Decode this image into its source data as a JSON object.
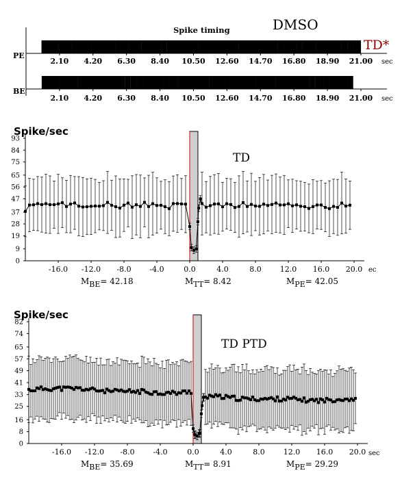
{
  "chart_data": [
    {
      "type": "raster",
      "title": "Spike timing",
      "condition": "DMSO",
      "marker_label": "TD*",
      "x_unit": "sec",
      "x_ticks": [
        "2.10",
        "4.20",
        "6.30",
        "8.40",
        "10.50",
        "12.60",
        "14.70",
        "16.80",
        "18.90",
        "21.00"
      ],
      "x_range": [
        0,
        21.0
      ],
      "rows": [
        {
          "name": "PE",
          "duration": 21.0,
          "spike_rate": 42
        },
        {
          "name": "BE",
          "duration": 20.5,
          "spike_rate": 42
        }
      ]
    },
    {
      "type": "line",
      "ylabel": "Spike/sec",
      "title": "TD",
      "x_unit": "ec",
      "xlim": [
        -20,
        20
      ],
      "ylim": [
        0,
        93
      ],
      "y_ticks": [
        0,
        9,
        19,
        28,
        37,
        47,
        56,
        65,
        75,
        84,
        93
      ],
      "x_ticks": [
        "-16.0",
        "-12.0",
        "-8.0",
        "-4.0",
        "0.0",
        "4.0",
        "8.0",
        "12.0",
        "16.0",
        "20.0"
      ],
      "shaded_window": [
        0,
        1
      ],
      "stats": [
        {
          "sym": "M",
          "sub": "BE",
          "text": "= 42.18"
        },
        {
          "sym": "M",
          "sub": "TT",
          "text": "= 8.42"
        },
        {
          "sym": "M",
          "sub": "PE",
          "text": "= 42.05"
        }
      ],
      "series": [
        {
          "values": [
            [
              -20.0,
              38
            ],
            [
              -19.5,
              41
            ],
            [
              -19.0,
              42
            ],
            [
              -18.5,
              42
            ],
            [
              -18.0,
              43
            ],
            [
              -17.5,
              42
            ],
            [
              -17.0,
              43
            ],
            [
              -16.5,
              42
            ],
            [
              -16.0,
              42
            ],
            [
              -15.5,
              43
            ],
            [
              -15.0,
              42
            ],
            [
              -14.5,
              42
            ],
            [
              -14.0,
              43
            ],
            [
              -13.5,
              42
            ],
            [
              -13.0,
              42
            ],
            [
              -12.5,
              41
            ],
            [
              -12.0,
              42
            ],
            [
              -11.5,
              43
            ],
            [
              -11.0,
              42
            ],
            [
              -10.5,
              42
            ],
            [
              -10.0,
              43
            ],
            [
              -9.5,
              42
            ],
            [
              -9.0,
              42
            ],
            [
              -8.5,
              41
            ],
            [
              -8.0,
              42
            ],
            [
              -7.5,
              43
            ],
            [
              -7.0,
              42
            ],
            [
              -6.5,
              42
            ],
            [
              -6.0,
              41
            ],
            [
              -5.5,
              43
            ],
            [
              -5.0,
              42
            ],
            [
              -4.5,
              42
            ],
            [
              -4.0,
              43
            ],
            [
              -3.5,
              42
            ],
            [
              -3.0,
              42
            ],
            [
              -2.5,
              41
            ],
            [
              -2.0,
              42
            ],
            [
              -1.5,
              43
            ],
            [
              -1.0,
              42
            ],
            [
              -0.5,
              42
            ],
            [
              0.0,
              26
            ],
            [
              0.2,
              10
            ],
            [
              0.5,
              8
            ],
            [
              0.8,
              9
            ],
            [
              1.1,
              40
            ],
            [
              1.3,
              47
            ],
            [
              1.5,
              43
            ],
            [
              2.0,
              42
            ],
            [
              2.5,
              42
            ],
            [
              3.0,
              43
            ],
            [
              3.5,
              42
            ],
            [
              4.0,
              42
            ],
            [
              4.5,
              43
            ],
            [
              5.0,
              42
            ],
            [
              5.5,
              41
            ],
            [
              6.0,
              42
            ],
            [
              6.5,
              43
            ],
            [
              7.0,
              42
            ],
            [
              7.5,
              42
            ],
            [
              8.0,
              41
            ],
            [
              8.5,
              42
            ],
            [
              9.0,
              43
            ],
            [
              9.5,
              42
            ],
            [
              10.0,
              42
            ],
            [
              10.5,
              43
            ],
            [
              11.0,
              42
            ],
            [
              11.5,
              41
            ],
            [
              12.0,
              42
            ],
            [
              12.5,
              42
            ],
            [
              13.0,
              43
            ],
            [
              13.5,
              42
            ],
            [
              14.0,
              42
            ],
            [
              14.5,
              41
            ],
            [
              15.0,
              42
            ],
            [
              15.5,
              43
            ],
            [
              16.0,
              42
            ],
            [
              16.5,
              42
            ],
            [
              17.0,
              41
            ],
            [
              17.5,
              42
            ],
            [
              18.0,
              42
            ],
            [
              18.5,
              43
            ],
            [
              19.0,
              42
            ],
            [
              19.5,
              42
            ]
          ],
          "error": 21
        }
      ]
    },
    {
      "type": "line",
      "ylabel": "Spike/sec",
      "title": "TD PTD",
      "x_unit": "sec",
      "xlim": [
        -20,
        20
      ],
      "ylim": [
        0,
        82
      ],
      "y_ticks": [
        0,
        8,
        16,
        25,
        33,
        41,
        49,
        57,
        65,
        74,
        82
      ],
      "x_ticks": [
        "-16.0",
        "-12.0",
        "-8.0",
        "-4.0",
        "0.0",
        "4.0",
        "8.0",
        "12.0",
        "16.0",
        "20.0"
      ],
      "shaded_window": [
        0,
        1
      ],
      "stats": [
        {
          "sym": "M",
          "sub": "BE",
          "text": "= 35.69"
        },
        {
          "sym": "M",
          "sub": "TT",
          "text": "= 8.91"
        },
        {
          "sym": "M",
          "sub": "PE",
          "text": "= 29.29"
        }
      ],
      "series": [
        {
          "values": [
            [
              -20.0,
              36
            ],
            [
              -18.0,
              37
            ],
            [
              -16.0,
              37
            ],
            [
              -14.0,
              37
            ],
            [
              -12.0,
              36
            ],
            [
              -10.0,
              35
            ],
            [
              -8.0,
              35
            ],
            [
              -6.0,
              35
            ],
            [
              -4.0,
              34
            ],
            [
              -2.0,
              34
            ],
            [
              -0.2,
              35
            ],
            [
              0.0,
              10
            ],
            [
              0.2,
              6
            ],
            [
              0.5,
              5
            ],
            [
              0.8,
              7
            ],
            [
              1.0,
              20
            ],
            [
              1.2,
              31
            ],
            [
              2.0,
              32
            ],
            [
              4.0,
              31
            ],
            [
              6.0,
              30
            ],
            [
              8.0,
              30
            ],
            [
              10.0,
              30
            ],
            [
              12.0,
              30
            ],
            [
              14.0,
              29
            ],
            [
              16.0,
              29
            ],
            [
              18.0,
              30
            ],
            [
              19.8,
              30
            ]
          ],
          "error": 20
        }
      ]
    }
  ],
  "colors": {
    "shade": "#cfcfcf",
    "event_line": "#cc0000",
    "marker_label": "#8b0000",
    "ink": "#000000"
  }
}
